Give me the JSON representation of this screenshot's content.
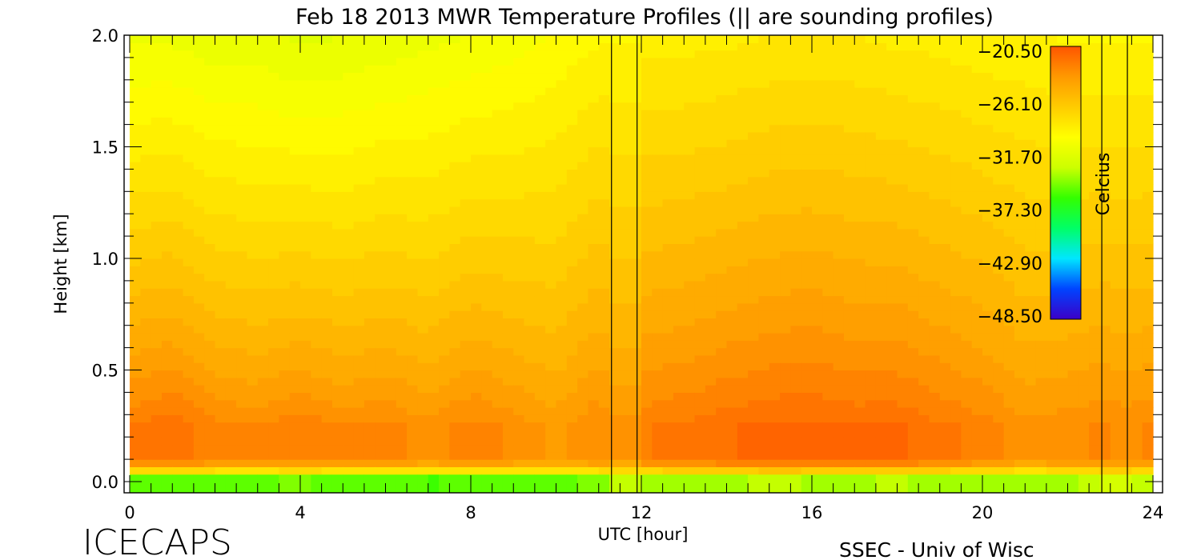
{
  "chart_data": {
    "type": "heatmap",
    "title": "Feb 18 2013 MWR Temperature Profiles (|| are sounding profiles)",
    "xlabel": "UTC [hour]",
    "ylabel": "Height [km]",
    "xlim": [
      0,
      24
    ],
    "ylim": [
      0,
      2.0
    ],
    "xticks": [
      "0",
      "4",
      "8",
      "12",
      "16",
      "20",
      "24"
    ],
    "yticks": [
      "0.0",
      "0.5",
      "1.0",
      "1.5",
      "2.0"
    ],
    "colorbar": {
      "label": "Celcius",
      "ticks": [
        "-20.50",
        "-26.10",
        "-31.70",
        "-37.30",
        "-42.90",
        "-48.50"
      ],
      "range": [
        -48.5,
        -20.5
      ],
      "colors": [
        "#3b00c8",
        "#0044ff",
        "#00e6ff",
        "#00ff66",
        "#33ff00",
        "#ccff00",
        "#ffff00",
        "#ffcc00",
        "#ff9900",
        "#ff5500"
      ]
    },
    "sounding_hours": [
      11.3,
      11.9,
      22.8,
      23.4
    ],
    "heights_km": [
      0.0,
      0.02,
      0.04,
      0.06,
      0.1,
      0.15,
      0.25,
      0.35,
      0.45,
      0.55,
      0.65,
      0.8,
      1.0,
      1.2,
      1.4,
      1.6,
      1.8,
      2.0
    ],
    "temperature_celsius": {
      "hours": [
        0,
        1,
        2,
        3,
        4,
        5,
        6,
        7,
        8,
        9,
        10,
        11,
        11.3,
        11.9,
        12,
        13,
        14,
        15,
        16,
        17,
        18,
        19,
        20,
        21,
        22,
        22.8,
        23.4,
        24
      ],
      "surface_c": [
        -40,
        -40,
        -39.5,
        -39.5,
        -39,
        -40,
        -39.5,
        -40,
        -40,
        -39.5,
        -39,
        -39,
        -37,
        -37,
        -38,
        -38,
        -38,
        -37.5,
        -38,
        -38,
        -37.5,
        -38,
        -38,
        -38,
        -38,
        -36,
        -36,
        -37
      ],
      "peak_c": [
        -21.8,
        -21.3,
        -22.3,
        -22.6,
        -22.0,
        -22.6,
        -22.3,
        -23.0,
        -22.2,
        -22.8,
        -23.5,
        -22.5,
        -23.0,
        -23.0,
        -22.0,
        -21.7,
        -21.3,
        -21.0,
        -20.9,
        -21.2,
        -21.1,
        -21.7,
        -22.2,
        -23.0,
        -22.8,
        -22.5,
        -22.7,
        -22.5
      ],
      "top_c": [
        -30.5,
        -30.5,
        -30.8,
        -30.8,
        -31.2,
        -31,
        -30.8,
        -30.5,
        -30.3,
        -30,
        -29.5,
        -29,
        -29,
        -29,
        -28.5,
        -28.5,
        -28.4,
        -28.2,
        -28.1,
        -28.2,
        -28.4,
        -28.5,
        -28.7,
        -28.8,
        -29,
        -29,
        -29,
        -29
      ]
    }
  },
  "footer": {
    "logo": "ICECAPS",
    "credit": "SSEC - Univ of Wisc"
  }
}
